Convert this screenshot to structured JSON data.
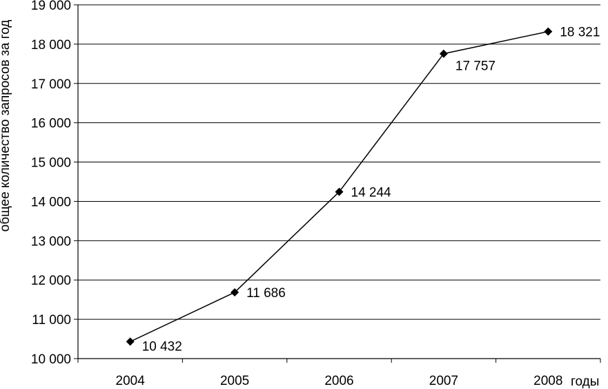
{
  "chart_data": {
    "type": "line",
    "title": "",
    "xlabel": "годы",
    "ylabel": "общее количество запросов за год",
    "categories": [
      "2004",
      "2005",
      "2006",
      "2007",
      "2008"
    ],
    "series": [
      {
        "values": [
          10432,
          11686,
          14244,
          17757,
          18321
        ],
        "data_labels": [
          "10 432",
          "11 686",
          "14 244",
          "17 757",
          "18 321"
        ],
        "color": "#000000",
        "marker": "diamond"
      }
    ],
    "ylim": [
      10000,
      19000
    ],
    "yticks": [
      10000,
      11000,
      12000,
      13000,
      14000,
      15000,
      16000,
      17000,
      18000,
      19000
    ],
    "ytick_labels": [
      "10 000",
      "11 000",
      "12 000",
      "13 000",
      "14 000",
      "15 000",
      "16 000",
      "17 000",
      "18 000",
      "19 000"
    ],
    "grid": "horizontal",
    "gridline_color": "#000000",
    "legend": false
  }
}
